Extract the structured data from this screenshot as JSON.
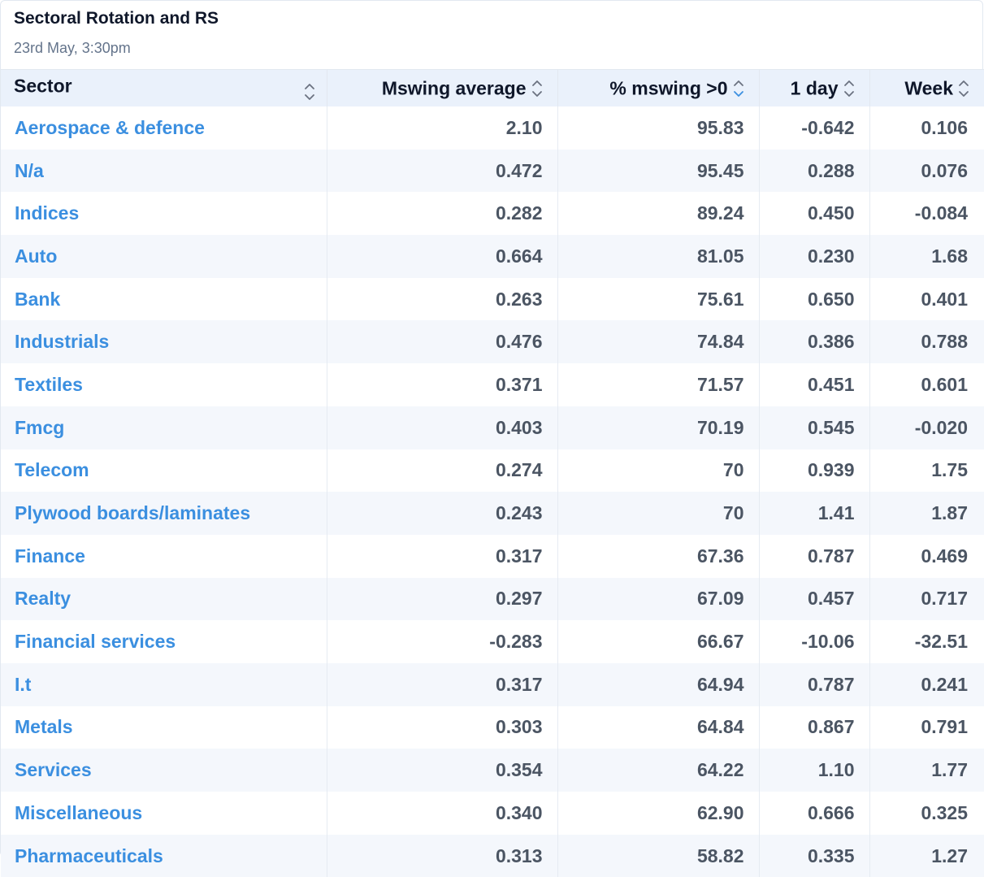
{
  "header": {
    "title": "Sectoral Rotation and RS",
    "subtitle": "23rd May, 3:30pm"
  },
  "table": {
    "columns": [
      {
        "label": "Sector",
        "sort": "none"
      },
      {
        "label": "Mswing average",
        "sort": "none"
      },
      {
        "label": "% mswing >0",
        "sort": "desc"
      },
      {
        "label": "1 day",
        "sort": "none"
      },
      {
        "label": "Week",
        "sort": "none"
      }
    ],
    "rows": [
      [
        "Aerospace & defence",
        "2.10",
        "95.83",
        "-0.642",
        "0.106"
      ],
      [
        "N/a",
        "0.472",
        "95.45",
        "0.288",
        "0.076"
      ],
      [
        "Indices",
        "0.282",
        "89.24",
        "0.450",
        "-0.084"
      ],
      [
        "Auto",
        "0.664",
        "81.05",
        "0.230",
        "1.68"
      ],
      [
        "Bank",
        "0.263",
        "75.61",
        "0.650",
        "0.401"
      ],
      [
        "Industrials",
        "0.476",
        "74.84",
        "0.386",
        "0.788"
      ],
      [
        "Textiles",
        "0.371",
        "71.57",
        "0.451",
        "0.601"
      ],
      [
        "Fmcg",
        "0.403",
        "70.19",
        "0.545",
        "-0.020"
      ],
      [
        "Telecom",
        "0.274",
        "70",
        "0.939",
        "1.75"
      ],
      [
        "Plywood boards/laminates",
        "0.243",
        "70",
        "1.41",
        "1.87"
      ],
      [
        "Finance",
        "0.317",
        "67.36",
        "0.787",
        "0.469"
      ],
      [
        "Realty",
        "0.297",
        "67.09",
        "0.457",
        "0.717"
      ],
      [
        "Financial services",
        "-0.283",
        "66.67",
        "-10.06",
        "-32.51"
      ],
      [
        "I.t",
        "0.317",
        "64.94",
        "0.787",
        "0.241"
      ],
      [
        "Metals",
        "0.303",
        "64.84",
        "0.867",
        "0.791"
      ],
      [
        "Services",
        "0.354",
        "64.22",
        "1.10",
        "1.77"
      ],
      [
        "Miscellaneous",
        "0.340",
        "62.90",
        "0.666",
        "0.325"
      ],
      [
        "Pharmaceuticals",
        "0.313",
        "58.82",
        "0.335",
        "1.27"
      ]
    ]
  },
  "colors": {
    "link": "#3b8fe0",
    "header_bg": "#eaf1fb",
    "sort_active": "#3b8fe0",
    "sort_inactive": "#6b7280"
  }
}
